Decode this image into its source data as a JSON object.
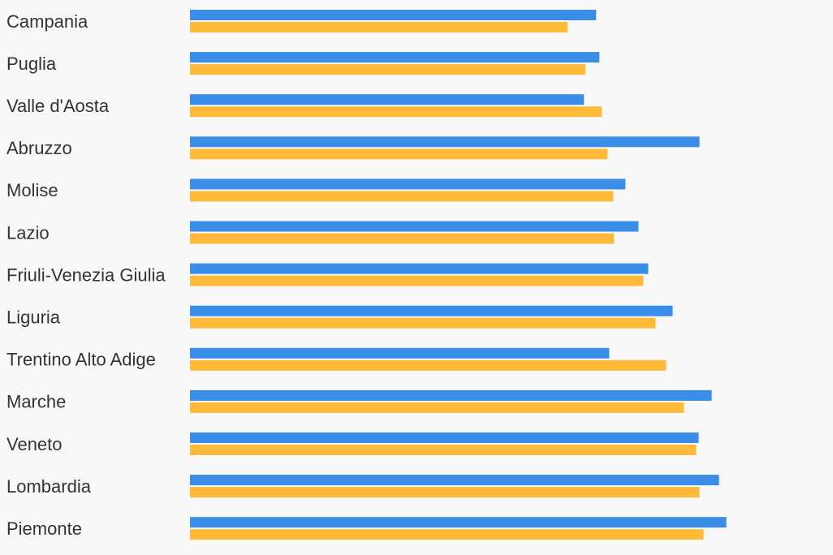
{
  "chart_data": {
    "type": "bar",
    "orientation": "horizontal",
    "categories": [
      "Campania",
      "Puglia",
      "Valle d'Aosta",
      "Abruzzo",
      "Molise",
      "Lazio",
      "Friuli-Venezia Giulia",
      "Liguria",
      "Trentino Alto Adige",
      "Marche",
      "Veneto",
      "Lombardia",
      "Piemonte"
    ],
    "series": [
      {
        "color": "#3a8ee8",
        "values": [
          499,
          503,
          484,
          626,
          535,
          551,
          563,
          593,
          515,
          641,
          625,
          650,
          659
        ]
      },
      {
        "color": "#ffba3a",
        "values": [
          464,
          486,
          506,
          513,
          520,
          521,
          557,
          572,
          585,
          607,
          622,
          626,
          631
        ]
      }
    ],
    "xlim": [
      0,
      790
    ],
    "grid": false,
    "legend": "none",
    "title": "",
    "xlabel": "",
    "ylabel": ""
  }
}
